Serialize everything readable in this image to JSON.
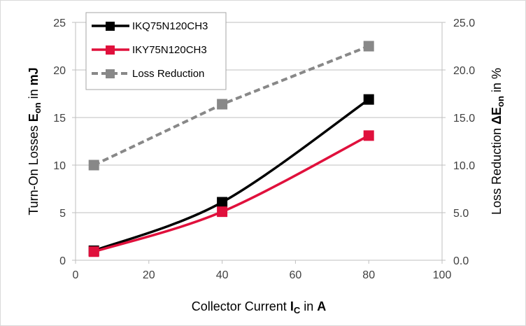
{
  "chart_data": {
    "type": "line",
    "x": [
      5,
      40,
      80
    ],
    "xlim": [
      0,
      100
    ],
    "x_ticks": [
      "0",
      "20",
      "40",
      "60",
      "80",
      "100"
    ],
    "xlabel": {
      "main": "Collector Current ",
      "var": "I",
      "sub": "C",
      "post": " in ",
      "unit": "A"
    },
    "ylim_left": [
      0,
      25
    ],
    "y_ticks_left": [
      "0",
      "5",
      "10",
      "15",
      "20",
      "25"
    ],
    "ylabel_left": {
      "main": "Turn-On Losses ",
      "var": "E",
      "sub": "on",
      "post": " in ",
      "unit": "mJ"
    },
    "ylim_right": [
      0,
      25
    ],
    "y_ticks_right": [
      "0.0",
      "5.0",
      "10.0",
      "15.0",
      "20.0",
      "25.0"
    ],
    "ylabel_right": {
      "main": "Loss Reduction ",
      "var": "ΔE",
      "sub": "on",
      "post": " in %"
    },
    "grid": true,
    "legend_position": "top-left",
    "series": [
      {
        "name": "IKQ75N120CH3",
        "axis": "left",
        "values": [
          1.0,
          6.1,
          16.9
        ],
        "color": "#000000",
        "style": "solid"
      },
      {
        "name": "IKY75N120CH3",
        "axis": "left",
        "values": [
          0.9,
          5.1,
          13.1
        ],
        "color": "#e0103c",
        "style": "solid"
      },
      {
        "name": "Loss Reduction",
        "axis": "right",
        "values": [
          10.0,
          16.4,
          22.5
        ],
        "color": "#888888",
        "style": "dashed"
      }
    ]
  }
}
